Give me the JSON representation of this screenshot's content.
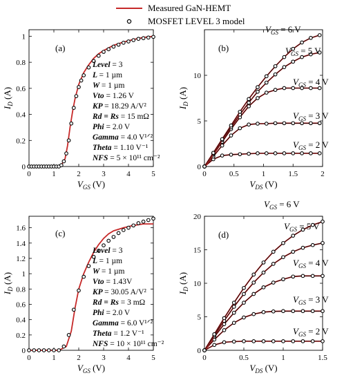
{
  "legend": [
    {
      "label": "Measured GaN-HEMT",
      "style": "line",
      "color": "#c62828"
    },
    {
      "label": "MOSFET LEVEL 3 model",
      "style": "circle-marker",
      "color": "#000000"
    }
  ],
  "colors": {
    "measured": "#c62828",
    "model": "#000000",
    "axes": "#000000"
  },
  "chart_data": [
    {
      "id": "a",
      "type": "line",
      "panel_label": "(a)",
      "xlabel": "V_GS (V)",
      "ylabel": "I_D (A)",
      "xlim": [
        0,
        5
      ],
      "ylim": [
        0,
        1.05
      ],
      "xticks": [
        0,
        1,
        2,
        3,
        4,
        5
      ],
      "yticks": [
        0,
        0.2,
        0.4,
        0.6,
        0.8,
        1
      ],
      "grid": false,
      "series": [
        {
          "name": "Measured GaN-HEMT",
          "style": "line",
          "x": [
            0,
            1.0,
            1.3,
            1.45,
            1.55,
            1.65,
            1.75,
            1.85,
            2.0,
            2.2,
            2.4,
            2.6,
            2.8,
            3.0,
            3.4,
            3.8,
            4.2,
            4.6,
            5.0
          ],
          "y": [
            0,
            0,
            0.01,
            0.06,
            0.16,
            0.3,
            0.42,
            0.52,
            0.63,
            0.72,
            0.78,
            0.83,
            0.865,
            0.89,
            0.93,
            0.955,
            0.975,
            0.99,
            1.0
          ]
        },
        {
          "name": "MOSFET LEVEL 3 model",
          "style": "markers",
          "x": [
            0,
            0.1,
            0.2,
            0.3,
            0.4,
            0.5,
            0.6,
            0.7,
            0.8,
            0.9,
            1.0,
            1.1,
            1.2,
            1.3,
            1.4,
            1.5,
            1.6,
            1.7,
            1.8,
            1.9,
            2.0,
            2.1,
            2.2,
            2.4,
            2.6,
            2.8,
            3.0,
            3.2,
            3.4,
            3.6,
            3.8,
            4.0,
            4.2,
            4.4,
            4.6,
            4.8,
            5.0
          ],
          "y": [
            0,
            0,
            0,
            0,
            0,
            0,
            0,
            0,
            0,
            0,
            0,
            0,
            0,
            0.01,
            0.04,
            0.1,
            0.2,
            0.33,
            0.45,
            0.54,
            0.61,
            0.66,
            0.7,
            0.76,
            0.81,
            0.85,
            0.88,
            0.9,
            0.92,
            0.935,
            0.95,
            0.96,
            0.97,
            0.98,
            0.985,
            0.99,
            0.995
          ]
        }
      ],
      "params": [
        {
          "name": "Level",
          "value": "= 3"
        },
        {
          "name": "L",
          "value": "= 1 µm"
        },
        {
          "name": "W",
          "value": "= 1 µm"
        },
        {
          "name": "Vto",
          "value": "= 1.26 V"
        },
        {
          "name": "KP",
          "value": "= 18.29 A/V²"
        },
        {
          "name": "Rd = Rs",
          "value": "= 15 mΩ"
        },
        {
          "name": "Phi",
          "value": "= 2.0 V"
        },
        {
          "name": "Gamma",
          "value": "= 4.0 V¹ᐟ²"
        },
        {
          "name": "Theta",
          "value": "= 1.10 V⁻¹"
        },
        {
          "name": "NFS",
          "value": "= 5 × 10¹¹ cm⁻²"
        }
      ]
    },
    {
      "id": "b",
      "type": "line",
      "panel_label": "(b)",
      "xlabel": "V_DS (V)",
      "ylabel": "I_D (A)",
      "xlim": [
        0,
        2
      ],
      "ylim": [
        0,
        15
      ],
      "xticks": [
        0,
        0.5,
        1,
        1.5,
        2
      ],
      "yticks": [
        0,
        5,
        10
      ],
      "grid": false,
      "x": [
        0,
        0.15,
        0.3,
        0.45,
        0.6,
        0.75,
        0.9,
        1.05,
        1.2,
        1.35,
        1.5,
        1.65,
        1.8,
        1.95
      ],
      "series": [
        {
          "name": "V_GS = 2 V",
          "measured": [
            0,
            0.8,
            1.2,
            1.3,
            1.35,
            1.4,
            1.45,
            1.45,
            1.45,
            1.45,
            1.45,
            1.45,
            1.45,
            1.45
          ],
          "model": [
            0,
            0.8,
            1.2,
            1.3,
            1.35,
            1.4,
            1.45,
            1.45,
            1.45,
            1.45,
            1.45,
            1.45,
            1.45,
            1.45
          ]
        },
        {
          "name": "V_GS = 3 V",
          "measured": [
            0,
            1.1,
            2.3,
            3.4,
            4.2,
            4.6,
            4.7,
            4.7,
            4.75,
            4.75,
            4.75,
            4.75,
            4.75,
            4.75
          ],
          "model": [
            0,
            1.1,
            2.3,
            3.4,
            4.2,
            4.6,
            4.7,
            4.7,
            4.75,
            4.75,
            4.75,
            4.75,
            4.75,
            4.75
          ]
        },
        {
          "name": "V_GS = 4 V",
          "measured": [
            0,
            1.3,
            2.7,
            4.1,
            5.4,
            6.6,
            7.5,
            8.1,
            8.4,
            8.6,
            8.6,
            8.6,
            8.6,
            8.6
          ],
          "model": [
            0,
            1.3,
            2.7,
            4.1,
            5.4,
            6.6,
            7.5,
            8.1,
            8.4,
            8.6,
            8.6,
            8.6,
            8.6,
            8.6
          ]
        },
        {
          "name": "V_GS = 5 V",
          "measured": [
            0,
            1.4,
            2.9,
            4.3,
            5.7,
            7.0,
            8.2,
            9.2,
            10.1,
            10.9,
            11.5,
            12.0,
            12.3,
            12.5
          ],
          "model": [
            0,
            1.4,
            2.9,
            4.3,
            5.7,
            7.0,
            8.2,
            9.2,
            10.1,
            10.9,
            11.5,
            12.0,
            12.3,
            12.5
          ]
        },
        {
          "name": "V_GS = 6 V",
          "measured": [
            0,
            1.5,
            3.0,
            4.5,
            6.0,
            7.4,
            8.7,
            9.9,
            11.0,
            12.0,
            12.9,
            13.6,
            14.1,
            14.4
          ],
          "model": [
            0,
            1.5,
            3.0,
            4.5,
            6.0,
            7.4,
            8.7,
            9.9,
            11.0,
            12.0,
            12.9,
            13.6,
            14.1,
            14.4
          ]
        }
      ]
    },
    {
      "id": "c",
      "type": "line",
      "panel_label": "(c)",
      "xlabel": "V_GS (V)",
      "ylabel": "I_D (A)",
      "xlim": [
        0,
        5
      ],
      "ylim": [
        0,
        1.75
      ],
      "xticks": [
        0,
        1,
        2,
        3,
        4,
        5
      ],
      "yticks": [
        0,
        0.2,
        0.4,
        0.6,
        0.8,
        1,
        1.2,
        1.4,
        1.6
      ],
      "grid": false,
      "series": [
        {
          "name": "Measured GaN-HEMT",
          "style": "line",
          "x": [
            0,
            1.2,
            1.5,
            1.7,
            1.85,
            2.0,
            2.2,
            2.4,
            2.6,
            2.8,
            3.0,
            3.2,
            3.4,
            3.8,
            4.2,
            4.6,
            5.0
          ],
          "y": [
            0,
            0,
            0.05,
            0.25,
            0.55,
            0.8,
            1.0,
            1.15,
            1.28,
            1.38,
            1.46,
            1.52,
            1.56,
            1.6,
            1.63,
            1.65,
            1.65
          ]
        },
        {
          "name": "MOSFET LEVEL 3 model",
          "style": "markers",
          "x": [
            0,
            0.2,
            0.4,
            0.6,
            0.8,
            1.0,
            1.2,
            1.4,
            1.6,
            1.8,
            2.0,
            2.2,
            2.4,
            2.6,
            2.8,
            3.0,
            3.2,
            3.4,
            3.6,
            3.8,
            4.0,
            4.2,
            4.4,
            4.6,
            4.8,
            5.0
          ],
          "y": [
            0,
            0,
            0,
            0,
            0,
            0,
            0,
            0.05,
            0.2,
            0.53,
            0.78,
            0.96,
            1.1,
            1.22,
            1.3,
            1.37,
            1.43,
            1.48,
            1.53,
            1.57,
            1.6,
            1.63,
            1.66,
            1.68,
            1.7,
            1.72
          ]
        }
      ],
      "params": [
        {
          "name": "Level",
          "value": "= 3"
        },
        {
          "name": "L",
          "value": "= 1 µm"
        },
        {
          "name": "W",
          "value": "= 1 µm"
        },
        {
          "name": "Vto",
          "value": "= 1.43V"
        },
        {
          "name": "KP",
          "value": "= 30.05 A/V²"
        },
        {
          "name": "Rd = Rs",
          "value": "= 3 mΩ"
        },
        {
          "name": "Phi",
          "value": "= 2.0 V"
        },
        {
          "name": "Gamma",
          "value": "= 6.0 V¹ᐟ²"
        },
        {
          "name": "Theta",
          "value": "= 1.2 V⁻¹"
        },
        {
          "name": "NFS",
          "value": "= 10 × 10¹¹ cm⁻²"
        }
      ]
    },
    {
      "id": "d",
      "type": "line",
      "panel_label": "(d)",
      "xlabel": "V_DS (V)",
      "ylabel": "I_D (A)",
      "xlim": [
        0,
        1.5
      ],
      "ylim": [
        0,
        20
      ],
      "xticks": [
        0,
        0.5,
        1,
        1.5
      ],
      "yticks": [
        0,
        5,
        10,
        15,
        20
      ],
      "grid": false,
      "x": [
        0,
        0.125,
        0.25,
        0.375,
        0.5,
        0.625,
        0.75,
        0.875,
        1.0,
        1.125,
        1.25,
        1.375,
        1.5
      ],
      "series": [
        {
          "name": "V_GS = 2 V",
          "measured": [
            0,
            0.8,
            1.2,
            1.3,
            1.35,
            1.35,
            1.35,
            1.35,
            1.35,
            1.35,
            1.35,
            1.35,
            1.35
          ],
          "model": [
            0,
            0.8,
            1.2,
            1.3,
            1.35,
            1.35,
            1.35,
            1.35,
            1.35,
            1.35,
            1.35,
            1.35,
            1.35
          ]
        },
        {
          "name": "V_GS = 3 V",
          "measured": [
            0,
            1.6,
            3.0,
            4.1,
            4.9,
            5.4,
            5.7,
            5.8,
            5.85,
            5.85,
            5.85,
            5.85,
            5.85
          ],
          "model": [
            0,
            1.6,
            3.0,
            4.1,
            4.9,
            5.4,
            5.7,
            5.8,
            5.85,
            5.85,
            5.85,
            5.85,
            5.85
          ]
        },
        {
          "name": "V_GS = 4 V",
          "measured": [
            0,
            2.0,
            3.9,
            5.6,
            7.1,
            8.4,
            9.4,
            10.1,
            10.6,
            11.0,
            11.1,
            11.1,
            11.1
          ],
          "model": [
            0,
            2.0,
            3.9,
            5.6,
            7.1,
            8.4,
            9.4,
            10.1,
            10.6,
            11.0,
            11.1,
            11.1,
            11.1
          ]
        },
        {
          "name": "V_GS = 5 V",
          "measured": [
            0,
            2.2,
            4.4,
            6.5,
            8.4,
            10.1,
            11.6,
            12.9,
            13.9,
            14.7,
            15.3,
            15.7,
            16.0
          ],
          "model": [
            0,
            2.2,
            4.4,
            6.5,
            8.4,
            10.1,
            11.6,
            12.9,
            13.9,
            14.7,
            15.3,
            15.7,
            16.0
          ]
        },
        {
          "name": "V_GS = 6 V",
          "measured": [
            0,
            2.4,
            4.8,
            7.1,
            9.3,
            11.3,
            13.1,
            14.7,
            16.0,
            17.1,
            18.0,
            18.7,
            19.2
          ],
          "model": [
            0,
            2.4,
            4.8,
            7.1,
            9.3,
            11.3,
            13.1,
            14.7,
            16.0,
            17.1,
            18.0,
            18.7,
            19.2
          ]
        }
      ]
    }
  ]
}
